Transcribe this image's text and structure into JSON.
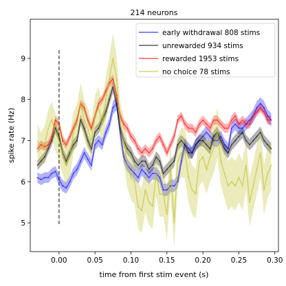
{
  "chart_data": {
    "type": "line",
    "title": "214 neurons",
    "xlabel": "time from first stim event (s)",
    "ylabel": "spike rate (Hz)",
    "xlim": [
      -0.04,
      0.305
    ],
    "ylim": [
      4.3,
      9.95
    ],
    "x_ticks": [
      "0.00",
      "0.05",
      "0.10",
      "0.15",
      "0.20",
      "0.25",
      "0.30"
    ],
    "y_ticks": [
      "5",
      "6",
      "7",
      "8",
      "9"
    ],
    "grid": false,
    "legend_position": "top-right",
    "vline": {
      "x": 0.0,
      "ymin": 4.95,
      "ymax": 9.2,
      "color": "#555555",
      "style": "dashed"
    },
    "x": [
      -0.03,
      -0.025,
      -0.02,
      -0.015,
      -0.01,
      -0.005,
      0.0,
      0.005,
      0.01,
      0.015,
      0.02,
      0.025,
      0.03,
      0.035,
      0.04,
      0.045,
      0.05,
      0.055,
      0.06,
      0.065,
      0.07,
      0.075,
      0.08,
      0.085,
      0.09,
      0.095,
      0.1,
      0.105,
      0.11,
      0.115,
      0.12,
      0.125,
      0.13,
      0.135,
      0.14,
      0.145,
      0.15,
      0.155,
      0.16,
      0.165,
      0.17,
      0.175,
      0.18,
      0.185,
      0.19,
      0.195,
      0.2,
      0.205,
      0.21,
      0.215,
      0.22,
      0.225,
      0.23,
      0.235,
      0.24,
      0.245,
      0.25,
      0.255,
      0.26,
      0.265,
      0.27,
      0.275,
      0.28,
      0.285,
      0.29,
      0.295
    ],
    "series": [
      {
        "name": "early withdrawal 808 stims",
        "color": "#0000ff",
        "values": [
          6.1,
          6.05,
          6.1,
          6.1,
          6.2,
          6.25,
          6.05,
          5.9,
          5.85,
          6.0,
          6.2,
          6.3,
          6.5,
          6.7,
          6.55,
          6.4,
          6.9,
          7.0,
          6.9,
          7.2,
          7.4,
          7.8,
          7.9,
          7.2,
          6.6,
          6.4,
          6.3,
          6.2,
          6.1,
          6.3,
          6.2,
          6.1,
          6.2,
          6.2,
          6.1,
          5.8,
          5.8,
          5.9,
          5.9,
          6.0,
          6.5,
          6.9,
          6.8,
          6.7,
          6.9,
          7.0,
          7.1,
          7.2,
          7.1,
          7.0,
          7.0,
          7.1,
          6.9,
          6.8,
          7.3,
          7.4,
          7.3,
          7.3,
          7.4,
          7.5,
          7.6,
          7.8,
          7.9,
          7.8,
          7.6,
          7.5
        ],
        "band": [
          0.13,
          0.13,
          0.13,
          0.13,
          0.13,
          0.13,
          0.14,
          0.14,
          0.14,
          0.14,
          0.14,
          0.14,
          0.14,
          0.14,
          0.14,
          0.14,
          0.14,
          0.14,
          0.14,
          0.14,
          0.15,
          0.16,
          0.16,
          0.15,
          0.15,
          0.15,
          0.15,
          0.15,
          0.15,
          0.15,
          0.15,
          0.15,
          0.15,
          0.15,
          0.15,
          0.15,
          0.15,
          0.15,
          0.15,
          0.15,
          0.15,
          0.15,
          0.15,
          0.15,
          0.15,
          0.15,
          0.15,
          0.15,
          0.15,
          0.15,
          0.15,
          0.15,
          0.15,
          0.15,
          0.15,
          0.15,
          0.15,
          0.15,
          0.15,
          0.15,
          0.16,
          0.16,
          0.16,
          0.16,
          0.16,
          0.16
        ]
      },
      {
        "name": "unrewarded 934 stims",
        "color": "#000000",
        "values": [
          6.4,
          6.5,
          6.6,
          6.8,
          7.0,
          7.3,
          7.1,
          6.7,
          6.5,
          6.7,
          6.9,
          7.0,
          7.5,
          7.3,
          7.0,
          6.8,
          7.2,
          7.3,
          7.5,
          7.7,
          8.0,
          8.3,
          7.9,
          7.3,
          7.0,
          6.8,
          6.7,
          6.5,
          6.4,
          6.5,
          6.5,
          6.3,
          6.4,
          6.6,
          6.5,
          6.2,
          6.3,
          6.4,
          6.5,
          6.9,
          7.0,
          6.9,
          6.7,
          6.7,
          6.9,
          7.0,
          7.0,
          6.9,
          6.8,
          7.1,
          7.2,
          7.0,
          6.8,
          6.7,
          6.9,
          7.0,
          7.1,
          7.2,
          7.0,
          6.9,
          7.0,
          7.1,
          7.2,
          7.0,
          6.9,
          6.8
        ],
        "band": [
          0.12,
          0.12,
          0.12,
          0.12,
          0.12,
          0.12,
          0.13,
          0.13,
          0.13,
          0.13,
          0.13,
          0.13,
          0.13,
          0.13,
          0.13,
          0.13,
          0.13,
          0.13,
          0.13,
          0.13,
          0.14,
          0.14,
          0.14,
          0.14,
          0.14,
          0.14,
          0.14,
          0.14,
          0.14,
          0.14,
          0.14,
          0.14,
          0.14,
          0.14,
          0.14,
          0.14,
          0.14,
          0.14,
          0.14,
          0.14,
          0.14,
          0.14,
          0.14,
          0.14,
          0.14,
          0.14,
          0.14,
          0.14,
          0.14,
          0.14,
          0.14,
          0.14,
          0.14,
          0.14,
          0.14,
          0.14,
          0.14,
          0.14,
          0.14,
          0.14,
          0.14,
          0.14,
          0.14,
          0.14,
          0.14,
          0.14
        ]
      },
      {
        "name": "rewarded 1953 stims",
        "color": "#ff0000",
        "values": [
          6.8,
          6.9,
          6.85,
          6.9,
          7.1,
          7.5,
          7.4,
          7.0,
          6.9,
          7.1,
          7.3,
          7.5,
          7.9,
          7.8,
          7.5,
          7.3,
          7.6,
          7.9,
          8.0,
          8.2,
          8.4,
          8.5,
          8.1,
          7.6,
          7.4,
          7.3,
          7.1,
          7.0,
          6.8,
          6.7,
          6.8,
          6.7,
          6.8,
          7.0,
          7.1,
          6.9,
          6.7,
          6.9,
          7.1,
          7.5,
          7.6,
          7.4,
          7.3,
          7.3,
          7.2,
          7.4,
          7.5,
          7.4,
          7.3,
          7.5,
          7.5,
          7.4,
          7.3,
          7.3,
          7.5,
          7.6,
          7.4,
          7.5,
          7.4,
          7.4,
          7.6,
          7.7,
          7.8,
          7.7,
          7.5,
          7.5
        ],
        "band": [
          0.1,
          0.1,
          0.1,
          0.1,
          0.1,
          0.1,
          0.1,
          0.1,
          0.1,
          0.1,
          0.1,
          0.1,
          0.1,
          0.1,
          0.1,
          0.1,
          0.1,
          0.1,
          0.1,
          0.1,
          0.11,
          0.11,
          0.11,
          0.11,
          0.11,
          0.11,
          0.11,
          0.11,
          0.11,
          0.11,
          0.11,
          0.11,
          0.11,
          0.11,
          0.11,
          0.11,
          0.11,
          0.11,
          0.11,
          0.11,
          0.11,
          0.11,
          0.11,
          0.11,
          0.11,
          0.11,
          0.11,
          0.11,
          0.11,
          0.11,
          0.11,
          0.11,
          0.11,
          0.11,
          0.11,
          0.11,
          0.11,
          0.11,
          0.11,
          0.11,
          0.11,
          0.11,
          0.11,
          0.11,
          0.11,
          0.11
        ]
      },
      {
        "name": "no choice 78 stims",
        "color": "#bcbd22",
        "values": [
          7.0,
          6.8,
          6.9,
          7.3,
          7.5,
          7.2,
          7.0,
          6.7,
          6.4,
          6.6,
          7.2,
          7.4,
          7.9,
          7.5,
          7.3,
          7.0,
          7.6,
          7.8,
          7.4,
          8.0,
          8.5,
          9.0,
          8.5,
          7.4,
          7.0,
          6.4,
          6.1,
          6.0,
          5.4,
          5.3,
          5.8,
          5.5,
          5.4,
          6.2,
          5.7,
          5.7,
          5.2,
          6.3,
          5.0,
          6.5,
          6.7,
          6.7,
          6.1,
          5.8,
          5.7,
          6.5,
          6.6,
          6.3,
          6.6,
          6.8,
          7.2,
          6.5,
          6.2,
          5.9,
          6.0,
          5.9,
          6.1,
          5.9,
          6.4,
          5.5,
          5.9,
          6.3,
          6.7,
          5.8,
          6.2,
          6.4
        ],
        "band": [
          0.4,
          0.4,
          0.45,
          0.45,
          0.45,
          0.45,
          0.5,
          0.5,
          0.5,
          0.5,
          0.5,
          0.5,
          0.5,
          0.5,
          0.5,
          0.5,
          0.5,
          0.5,
          0.5,
          0.55,
          0.55,
          0.6,
          0.55,
          0.55,
          0.55,
          0.55,
          0.55,
          0.55,
          0.55,
          0.55,
          0.55,
          0.55,
          0.55,
          0.55,
          0.55,
          0.55,
          0.6,
          0.6,
          0.6,
          0.6,
          0.6,
          0.6,
          0.6,
          0.6,
          0.6,
          0.6,
          0.6,
          0.6,
          0.6,
          0.6,
          0.6,
          0.6,
          0.6,
          0.6,
          0.6,
          0.6,
          0.6,
          0.6,
          0.6,
          0.6,
          0.6,
          0.6,
          0.6,
          0.6,
          0.6,
          0.6
        ]
      }
    ]
  }
}
